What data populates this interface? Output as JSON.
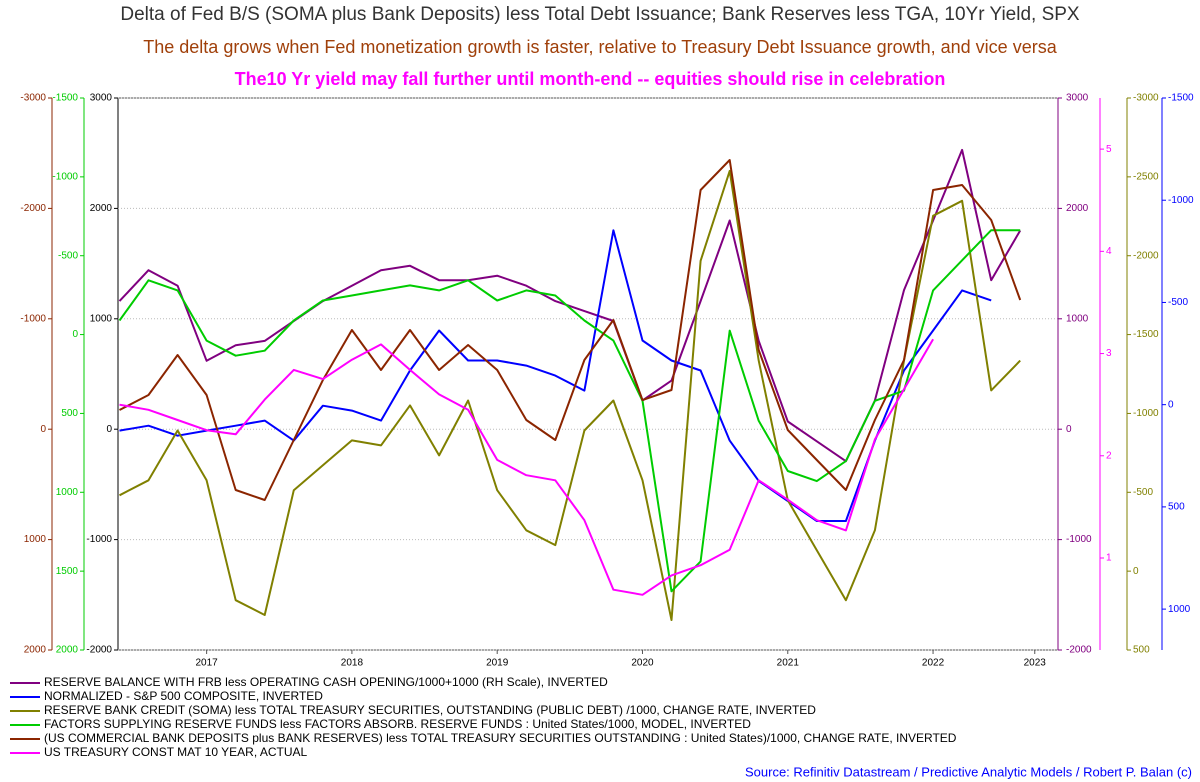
{
  "chart_data": {
    "type": "line",
    "title": "Delta of Fed B/S (SOMA plus Bank Deposits) less Total Debt Issuance; Bank Reserves less TGA, 10Yr Yield, SPX",
    "subtitle": "The delta grows when Fed monetization growth is faster, relative to Treasury Debt Issuance growth, and vice versa",
    "annotation": "The10 Yr yield may fall further until month-end -- equities should rise in celebration",
    "source": "Source: Refinitiv Datastream / Predictive Analytic Models / Robert P. Balan (c)",
    "x": [
      2016.9,
      2017.1,
      2017.3,
      2017.5,
      2017.7,
      2017.9,
      2018.1,
      2018.3,
      2018.5,
      2018.7,
      2018.9,
      2019.1,
      2019.3,
      2019.5,
      2019.7,
      2019.9,
      2020.1,
      2020.3,
      2020.5,
      2020.7,
      2020.9,
      2021.1,
      2021.3,
      2021.5,
      2021.7,
      2021.9,
      2022.1,
      2022.3,
      2022.5,
      2022.7,
      2022.9,
      2023.1
    ],
    "xlim": [
      2016.89,
      2023.36
    ],
    "xticks": [
      {
        "value": 2017.5,
        "label": "2017"
      },
      {
        "value": 2018.5,
        "label": "2018"
      },
      {
        "value": 2019.5,
        "label": "2019"
      },
      {
        "value": 2020.5,
        "label": "2020"
      },
      {
        "value": 2021.5,
        "label": "2021"
      },
      {
        "value": 2022.5,
        "label": "2022"
      },
      {
        "value": 2023.2,
        "label": "2023"
      }
    ],
    "axes": [
      {
        "color": "#000000",
        "ylim": [
          -2000,
          3000
        ],
        "yticks": [
          -2000,
          -1000,
          0,
          1000,
          2000,
          3000
        ]
      },
      {
        "color": "#8b2500",
        "ylim": [
          2000,
          -3000
        ],
        "yticks": [
          -3000,
          -2000,
          -1000,
          0,
          1000,
          2000
        ]
      },
      {
        "color": "#00cc00",
        "ylim": [
          2000,
          -1500
        ],
        "yticks": [
          -1500,
          -1000,
          -500,
          0,
          500,
          1000,
          1500,
          2000
        ]
      },
      {
        "color": "#800080",
        "ylim": [
          -2000,
          3000
        ],
        "yticks": [
          -2000,
          -1000,
          0,
          1000,
          2000,
          3000
        ]
      },
      {
        "color": "#ff00ff",
        "ylim": [
          0.1,
          5.5
        ],
        "yticks": [
          1,
          2,
          3,
          4,
          5
        ]
      },
      {
        "color": "#808000",
        "ylim": [
          500,
          -3000
        ],
        "yticks": [
          -3000,
          -2500,
          -2000,
          -1500,
          -1000,
          -500,
          0,
          500
        ]
      },
      {
        "color": "#0000ff",
        "ylim": [
          1200,
          -1500
        ],
        "yticks": [
          -1500,
          -1000,
          -500,
          0,
          500,
          1000
        ]
      }
    ],
    "grid": true,
    "series": [
      {
        "name": "RESERVE BALANCE WITH FRB less OPERATING CASH OPENING/1000+1000 (RH Scale), INVERTED",
        "color": "#800080",
        "axis": 3,
        "values": [
          1160,
          1440,
          1300,
          620,
          760,
          800,
          980,
          1160,
          1300,
          1440,
          1480,
          1350,
          1350,
          1390,
          1300,
          1160,
          1070,
          980,
          260,
          440,
          1160,
          1890,
          800,
          70,
          -110,
          -290,
          260,
          1260,
          1890,
          2530,
          1350,
          1800
        ]
      },
      {
        "name": "NORMALIZED - S&P 500 COMPOSITE, INVERTED",
        "color": "#0000ff",
        "axis": 6,
        "values": [
          127,
          103,
          152,
          127,
          103,
          78,
          176,
          5,
          29,
          78,
          -167,
          -363,
          -216,
          -216,
          -191,
          -142,
          -69,
          -853,
          -314,
          -216,
          -167,
          176,
          373,
          471,
          569,
          569,
          176,
          -167,
          -363,
          -559,
          -510,
          null
        ]
      },
      {
        "name": "RESERVE BANK CREDIT (SOMA) less TOTAL TREASURY SECURITIES, OUTSTANDING (PUBLIC DEBT) /1000, CHANGE RATE, INVERTED",
        "color": "#808000",
        "axis": 5,
        "values": [
          -481,
          -576,
          -892,
          -576,
          184,
          278,
          -513,
          -671,
          -829,
          -797,
          -1051,
          -734,
          -1082,
          -513,
          -259,
          -165,
          -892,
          -1082,
          -576,
          310,
          -1968,
          -2538,
          -1335,
          -449,
          -133,
          184,
          -259,
          -1335,
          -2253,
          -2348,
          -1146,
          -1335
        ]
      },
      {
        "name": "FACTORS SUPPLYING RESERVE FUNDS less FACTORS ABSORB. RESERVE FUNDS : United States/1000, MODEL, INVERTED",
        "color": "#00cc00",
        "axis": 2,
        "values": [
          -89,
          -344,
          -280,
          38,
          134,
          102,
          -89,
          -216,
          -248,
          -280,
          -312,
          -280,
          -344,
          -216,
          -280,
          -248,
          -89,
          38,
          420,
          1628,
          1438,
          -25,
          547,
          865,
          929,
          802,
          420,
          356,
          -280,
          -471,
          -662,
          -662
        ]
      },
      {
        "name": "(US COMMERCIAL BANK DEPOSITS plus BANK RESERVES) less TOTAL TREASURY SECURITIES OUTSTANDING : United States)/1000, CHANGE RATE, INVERTED",
        "color": "#8b2500",
        "axis": 1,
        "values": [
          -174,
          -310,
          -672,
          -310,
          551,
          641,
          98,
          -446,
          -899,
          -536,
          -899,
          -536,
          -763,
          -536,
          -83,
          98,
          -627,
          -989,
          -264,
          -355,
          -2167,
          -2438,
          -717,
          7,
          279,
          551,
          -83,
          -627,
          -2167,
          -2212,
          -1895,
          -1170
        ]
      },
      {
        "name": "US TREASURY CONST MAT 10 YEAR, ACTUAL",
        "color": "#ff00ff",
        "axis": 4,
        "values": [
          2.5,
          2.45,
          2.35,
          2.25,
          2.21,
          2.55,
          2.84,
          2.75,
          2.94,
          3.09,
          2.84,
          2.6,
          2.45,
          1.96,
          1.81,
          1.76,
          1.37,
          0.69,
          0.64,
          0.83,
          0.93,
          1.08,
          1.76,
          1.57,
          1.37,
          1.27,
          2.16,
          2.65,
          3.14,
          null,
          null,
          null
        ]
      }
    ]
  }
}
